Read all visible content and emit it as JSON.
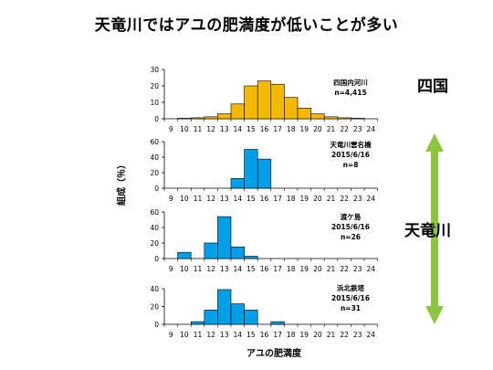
{
  "page": {
    "title": "天竜川ではアユの肥満度が低いことが多い",
    "region_shikoku": "四国",
    "region_tenryu": "天竜川"
  },
  "colors": {
    "shikoku_bar": "#F5B800",
    "tenryu_bar": "#00A0E9",
    "arrow": "#8CC63F"
  },
  "chart_data": {
    "type": "bar",
    "xlabel": "アユの肥満度",
    "ylabel": "組成（％）",
    "categories": [
      9,
      10,
      11,
      12,
      13,
      14,
      15,
      16,
      17,
      18,
      19,
      20,
      21,
      22,
      23,
      24
    ],
    "panels": [
      {
        "name": "四国内河川",
        "info": [
          "四国内河川",
          "n=4,415"
        ],
        "bar_color": "#F5B800",
        "ylim": [
          0,
          30
        ],
        "yticks": [
          0,
          10,
          20,
          30
        ],
        "bins": [
          [
            10,
            0.3
          ],
          [
            11,
            0.6
          ],
          [
            12,
            1.2
          ],
          [
            13,
            3
          ],
          [
            14,
            9
          ],
          [
            15,
            20
          ],
          [
            16,
            23
          ],
          [
            17,
            21
          ],
          [
            18,
            13
          ],
          [
            19,
            6.5
          ],
          [
            20,
            3
          ],
          [
            21,
            1.2
          ],
          [
            22,
            0.6
          ],
          [
            23,
            0.3
          ]
        ]
      },
      {
        "name": "天竜川雲名橋",
        "info": [
          "天竜川雲名橋",
          "2015/6/16",
          "n=8"
        ],
        "bar_color": "#00A0E9",
        "ylim": [
          0,
          60
        ],
        "yticks": [
          0,
          20,
          40,
          60
        ],
        "bins": [
          [
            14,
            12.5
          ],
          [
            15,
            50
          ],
          [
            16,
            37.5
          ]
        ]
      },
      {
        "name": "渡ケ島",
        "info": [
          "渡ケ島",
          "2015/6/16",
          "n=26"
        ],
        "bar_color": "#00A0E9",
        "ylim": [
          0,
          60
        ],
        "yticks": [
          0,
          20,
          40,
          60
        ],
        "bins": [
          [
            10,
            8
          ],
          [
            12,
            20
          ],
          [
            13,
            54
          ],
          [
            14,
            15
          ],
          [
            15,
            3
          ]
        ]
      },
      {
        "name": "浜北鉄塔",
        "info": [
          "浜北鉄塔",
          "2015/6/16",
          "n=31"
        ],
        "bar_color": "#00A0E9",
        "ylim": [
          0,
          40
        ],
        "yticks": [
          0,
          20,
          40
        ],
        "bins": [
          [
            11,
            3
          ],
          [
            12,
            16
          ],
          [
            13,
            39
          ],
          [
            14,
            23
          ],
          [
            15,
            16
          ],
          [
            17,
            3
          ]
        ]
      }
    ]
  }
}
